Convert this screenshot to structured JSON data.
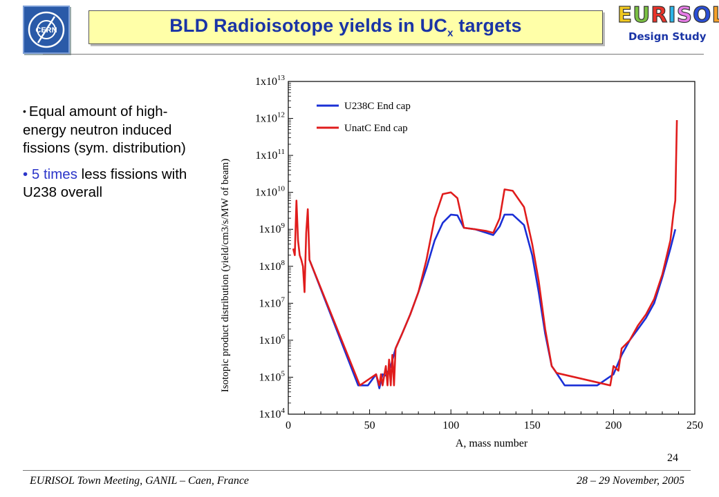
{
  "header": {
    "title_main": "BLD Radioisotope yields in UC",
    "title_sub": "x",
    "title_end": " targets",
    "cern_logo_text": "CERN",
    "eurisol_letters": [
      "E",
      "U",
      "R",
      "I",
      "S",
      "O",
      "L"
    ],
    "eurisol_colors": [
      "#f0c820",
      "#7bc043",
      "#e8342a",
      "#2bb5e8",
      "#e87de8",
      "#2a4fd6",
      "#f4a12a"
    ],
    "eurisol_subtitle": "Design Study"
  },
  "bullets": [
    {
      "text": "Equal amount of high-energy neutron induced fissions (sym. distribution)"
    },
    {
      "highlight": "5 times",
      "rest": " less fissions with U238 overall"
    }
  ],
  "chart_data": {
    "type": "line",
    "title": "",
    "xlabel": "A, mass number",
    "ylabel": "Isotopic product distribution (yield/cm3/s/MW of beam)",
    "xlim": [
      0,
      250
    ],
    "ylim": [
      10000,
      10000000000000
    ],
    "yscale": "log",
    "xticks": [
      0,
      50,
      100,
      150,
      200,
      250
    ],
    "yticks": [
      {
        "exp": "4",
        "value": 10000
      },
      {
        "exp": "5",
        "value": 100000
      },
      {
        "exp": "6",
        "value": 1000000
      },
      {
        "exp": "7",
        "value": 10000000
      },
      {
        "exp": "8",
        "value": 100000000
      },
      {
        "exp": "9",
        "value": 1000000000
      },
      {
        "exp": "10",
        "value": 10000000000
      },
      {
        "exp": "11",
        "value": 100000000000
      },
      {
        "exp": "12",
        "value": 1000000000000
      },
      {
        "exp": "13",
        "value": 10000000000000
      }
    ],
    "ytick_prefix": "1x10",
    "legend_position": "top-left",
    "series": [
      {
        "name": "U238C End cap",
        "color": "#1a2fd6",
        "points": [
          [
            13,
            150000000.0
          ],
          [
            43,
            60000.0
          ],
          [
            49,
            60000.0
          ],
          [
            54,
            120000.0
          ],
          [
            56,
            50000.0
          ],
          [
            58,
            120000.0
          ],
          [
            60,
            110000.0
          ],
          [
            63,
            200000.0
          ],
          [
            66,
            600000.0
          ],
          [
            70,
            1500000.0
          ],
          [
            75,
            5000000.0
          ],
          [
            80,
            20000000.0
          ],
          [
            85,
            90000000.0
          ],
          [
            90,
            500000000.0
          ],
          [
            95,
            1500000000.0
          ],
          [
            100,
            2500000000.0
          ],
          [
            104,
            2400000000.0
          ],
          [
            108,
            1100000000.0
          ],
          [
            115,
            1000000000.0
          ],
          [
            122,
            800000000.0
          ],
          [
            126,
            700000000.0
          ],
          [
            130,
            1200000000.0
          ],
          [
            133,
            2500000000.0
          ],
          [
            138,
            2500000000.0
          ],
          [
            145,
            1300000000.0
          ],
          [
            150,
            200000000.0
          ],
          [
            154,
            20000000.0
          ],
          [
            158,
            1500000.0
          ],
          [
            162,
            200000.0
          ],
          [
            164,
            150000.0
          ],
          [
            170,
            60000.0
          ],
          [
            190,
            60000.0
          ],
          [
            200,
            120000.0
          ],
          [
            205,
            400000.0
          ],
          [
            210,
            1000000.0
          ],
          [
            215,
            2000000.0
          ],
          [
            220,
            4000000.0
          ],
          [
            225,
            10000000.0
          ],
          [
            230,
            50000000.0
          ],
          [
            235,
            300000000.0
          ],
          [
            238,
            1000000000.0
          ]
        ]
      },
      {
        "name": "UnatC End cap",
        "color": "#e01c1c",
        "points": [
          [
            3,
            300000000.0
          ],
          [
            4,
            200000000.0
          ],
          [
            5,
            6000000000.0
          ],
          [
            6,
            500000000.0
          ],
          [
            7,
            200000000.0
          ],
          [
            8,
            150000000.0
          ],
          [
            9,
            100000000.0
          ],
          [
            10,
            20000000.0
          ],
          [
            11,
            800000000.0
          ],
          [
            12,
            3500000000.0
          ],
          [
            13,
            150000000.0
          ],
          [
            44,
            60000.0
          ],
          [
            54,
            120000.0
          ],
          [
            56,
            60000.0
          ],
          [
            57,
            120000.0
          ],
          [
            58,
            60000.0
          ],
          [
            60,
            200000.0
          ],
          [
            61,
            60000.0
          ],
          [
            62,
            300000.0
          ],
          [
            63,
            60000.0
          ],
          [
            64,
            400000.0
          ],
          [
            65,
            60000.0
          ],
          [
            66,
            600000.0
          ],
          [
            70,
            1500000.0
          ],
          [
            75,
            5000000.0
          ],
          [
            80,
            20000000.0
          ],
          [
            85,
            150000000.0
          ],
          [
            90,
            2000000000.0
          ],
          [
            95,
            9000000000.0
          ],
          [
            100,
            10000000000.0
          ],
          [
            104,
            7000000000.0
          ],
          [
            108,
            1100000000.0
          ],
          [
            115,
            1000000000.0
          ],
          [
            122,
            900000000.0
          ],
          [
            126,
            800000000.0
          ],
          [
            130,
            2000000000.0
          ],
          [
            133,
            12000000000.0
          ],
          [
            138,
            11000000000.0
          ],
          [
            145,
            4000000000.0
          ],
          [
            150,
            400000000.0
          ],
          [
            154,
            40000000.0
          ],
          [
            158,
            2000000.0
          ],
          [
            162,
            200000.0
          ],
          [
            165,
            130000.0
          ],
          [
            198,
            60000.0
          ],
          [
            200,
            200000.0
          ],
          [
            203,
            150000.0
          ],
          [
            205,
            600000.0
          ],
          [
            210,
            1000000.0
          ],
          [
            215,
            2500000.0
          ],
          [
            220,
            5000000.0
          ],
          [
            225,
            13000000.0
          ],
          [
            230,
            60000000.0
          ],
          [
            235,
            500000000.0
          ],
          [
            237,
            3000000000.0
          ],
          [
            238,
            6000000000.0
          ],
          [
            239,
            900000000000.0
          ]
        ]
      }
    ]
  },
  "page_number": "24",
  "footer": {
    "left": "EURISOL Town Meeting, GANIL – Caen, France",
    "right": "28 – 29 November, 2005"
  }
}
